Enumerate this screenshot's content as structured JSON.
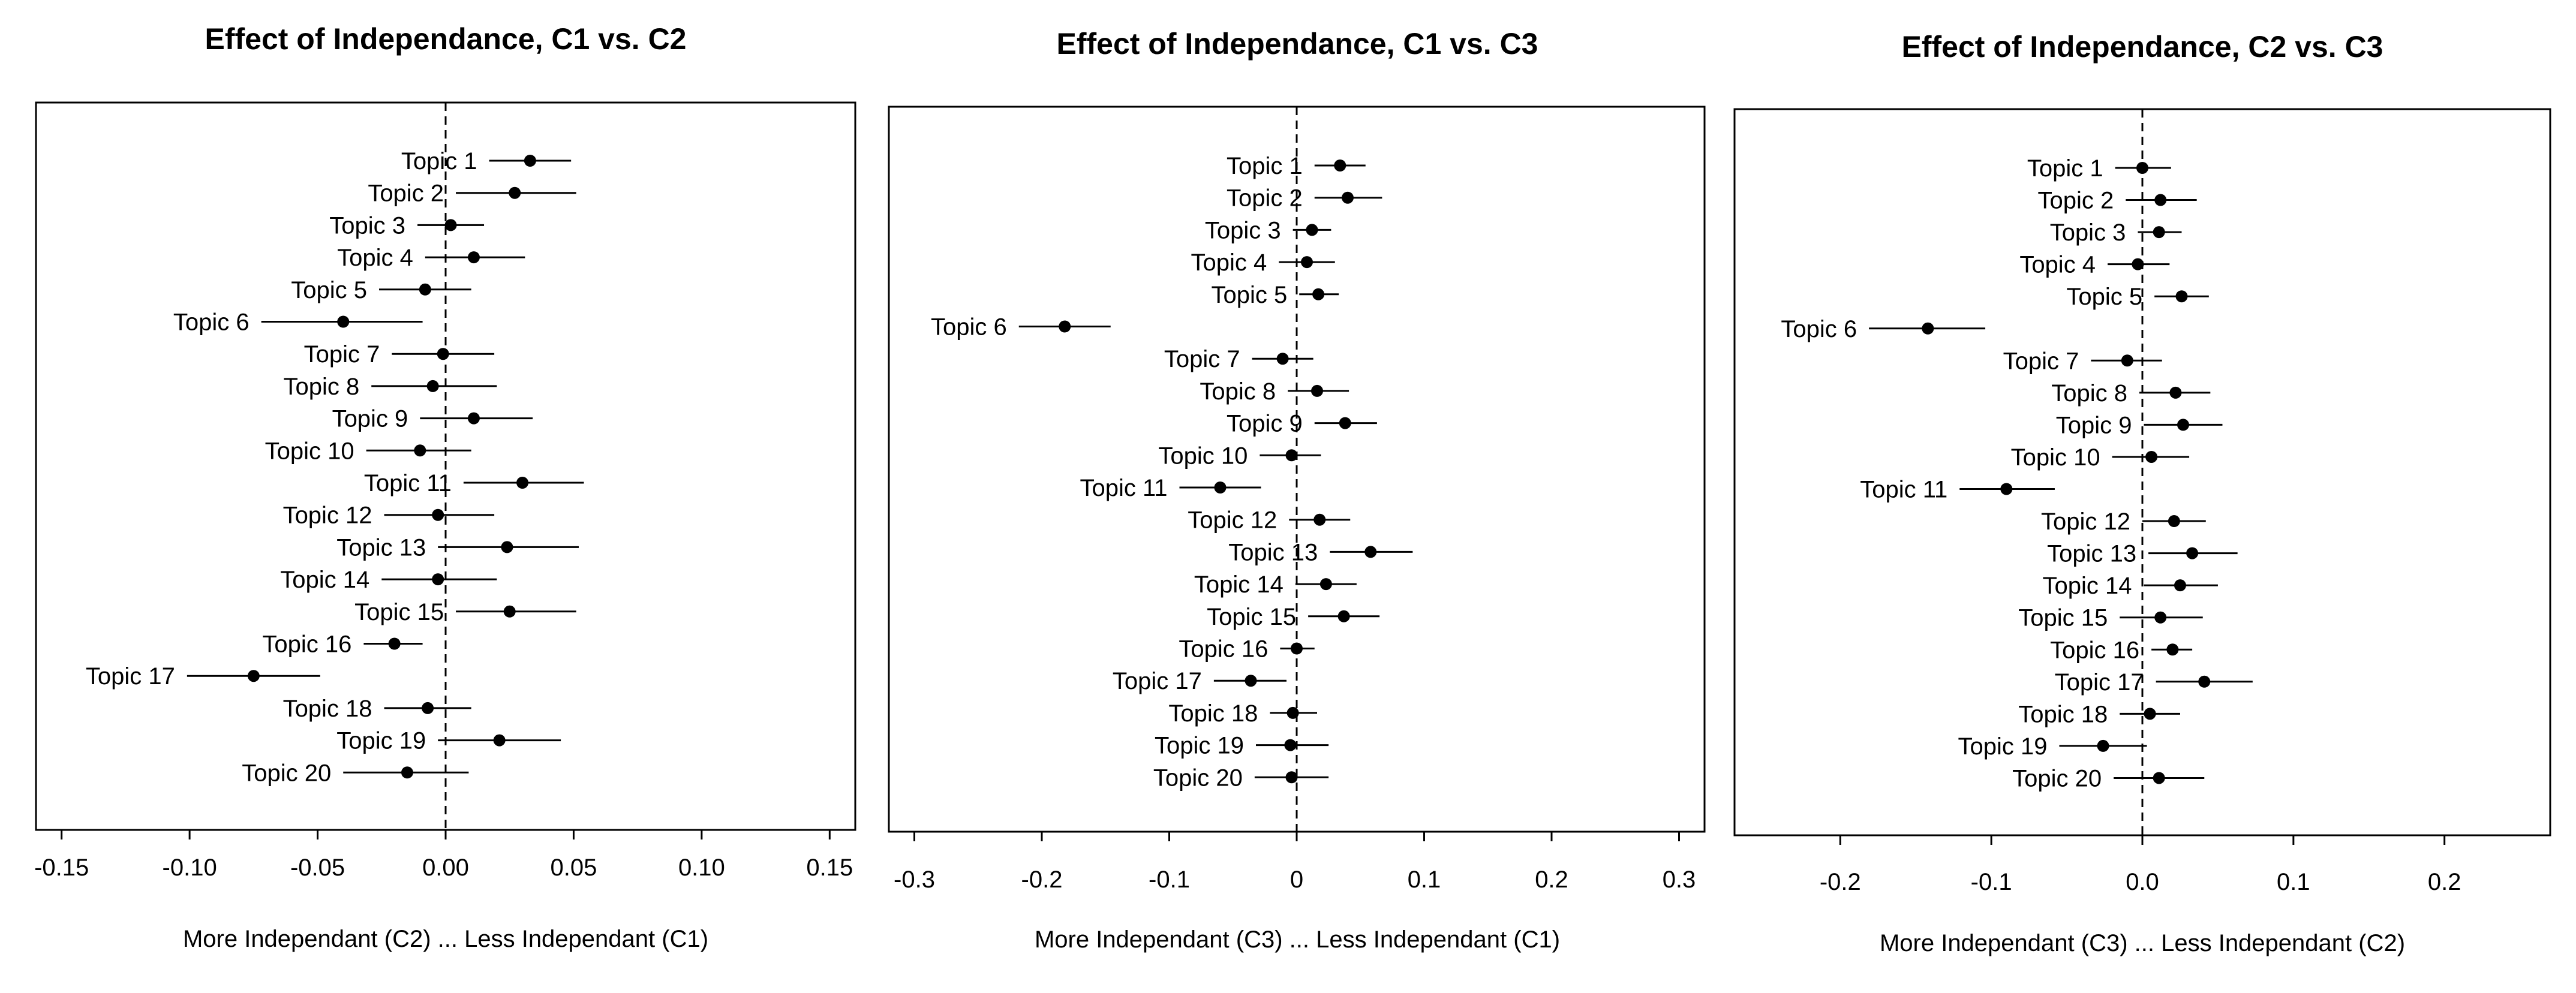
{
  "chart_data": [
    {
      "type": "forest",
      "title": "Effect of Independance, C1 vs. C2",
      "xlabel": "More Independant (C2) ... Less Independant (C1)",
      "xlim": [
        -0.16,
        0.16
      ],
      "xticks": [
        -0.15,
        -0.1,
        -0.05,
        0.0,
        0.05,
        0.1,
        0.15
      ],
      "xtick_labels": [
        "-0.15",
        "-0.10",
        "-0.05",
        "0.00",
        "0.05",
        "0.10",
        "0.15"
      ],
      "reference_line": 0,
      "points": [
        {
          "label": "Topic 1",
          "estimate": 0.033,
          "lower": 0.017,
          "upper": 0.049
        },
        {
          "label": "Topic 2",
          "estimate": 0.027,
          "lower": 0.004,
          "upper": 0.051
        },
        {
          "label": "Topic 3",
          "estimate": 0.002,
          "lower": -0.011,
          "upper": 0.015
        },
        {
          "label": "Topic 4",
          "estimate": 0.011,
          "lower": -0.008,
          "upper": 0.031
        },
        {
          "label": "Topic 5",
          "estimate": -0.008,
          "lower": -0.026,
          "upper": 0.01
        },
        {
          "label": "Topic 6",
          "estimate": -0.04,
          "lower": -0.072,
          "upper": -0.009
        },
        {
          "label": "Topic 7",
          "estimate": -0.001,
          "lower": -0.021,
          "upper": 0.019
        },
        {
          "label": "Topic 8",
          "estimate": -0.005,
          "lower": -0.029,
          "upper": 0.02
        },
        {
          "label": "Topic 9",
          "estimate": 0.011,
          "lower": -0.01,
          "upper": 0.034
        },
        {
          "label": "Topic 10",
          "estimate": -0.01,
          "lower": -0.031,
          "upper": 0.01
        },
        {
          "label": "Topic 11",
          "estimate": 0.03,
          "lower": 0.007,
          "upper": 0.054
        },
        {
          "label": "Topic 12",
          "estimate": -0.003,
          "lower": -0.024,
          "upper": 0.019
        },
        {
          "label": "Topic 13",
          "estimate": 0.024,
          "lower": -0.003,
          "upper": 0.052
        },
        {
          "label": "Topic 14",
          "estimate": -0.003,
          "lower": -0.025,
          "upper": 0.02
        },
        {
          "label": "Topic 15",
          "estimate": 0.025,
          "lower": 0.004,
          "upper": 0.051
        },
        {
          "label": "Topic 16",
          "estimate": -0.02,
          "lower": -0.032,
          "upper": -0.009
        },
        {
          "label": "Topic 17",
          "estimate": -0.075,
          "lower": -0.101,
          "upper": -0.049
        },
        {
          "label": "Topic 18",
          "estimate": -0.007,
          "lower": -0.024,
          "upper": 0.01
        },
        {
          "label": "Topic 19",
          "estimate": 0.021,
          "lower": -0.003,
          "upper": 0.045
        },
        {
          "label": "Topic 20",
          "estimate": -0.015,
          "lower": -0.04,
          "upper": 0.009
        }
      ]
    },
    {
      "type": "forest",
      "title": "Effect of Independance, C1 vs. C3",
      "xlabel": "More Independant (C3) ... Less Independant (C1)",
      "xlim": [
        -0.32,
        0.32
      ],
      "xticks": [
        -0.3,
        -0.2,
        -0.1,
        0,
        0.1,
        0.2,
        0.3
      ],
      "xtick_labels": [
        "-0.3",
        "-0.2",
        "-0.1",
        "0",
        "0.1",
        "0.2",
        "0.3"
      ],
      "reference_line": 0,
      "points": [
        {
          "label": "Topic 1",
          "estimate": 0.034,
          "lower": 0.014,
          "upper": 0.054
        },
        {
          "label": "Topic 2",
          "estimate": 0.04,
          "lower": 0.014,
          "upper": 0.067
        },
        {
          "label": "Topic 3",
          "estimate": 0.012,
          "lower": -0.003,
          "upper": 0.027
        },
        {
          "label": "Topic 4",
          "estimate": 0.008,
          "lower": -0.014,
          "upper": 0.03
        },
        {
          "label": "Topic 5",
          "estimate": 0.017,
          "lower": 0.002,
          "upper": 0.033
        },
        {
          "label": "Topic 6",
          "estimate": -0.182,
          "lower": -0.218,
          "upper": -0.146
        },
        {
          "label": "Topic 7",
          "estimate": -0.011,
          "lower": -0.035,
          "upper": 0.013
        },
        {
          "label": "Topic 8",
          "estimate": 0.016,
          "lower": -0.007,
          "upper": 0.041
        },
        {
          "label": "Topic 9",
          "estimate": 0.038,
          "lower": 0.014,
          "upper": 0.063
        },
        {
          "label": "Topic 10",
          "estimate": -0.004,
          "lower": -0.029,
          "upper": 0.019
        },
        {
          "label": "Topic 11",
          "estimate": -0.06,
          "lower": -0.092,
          "upper": -0.028
        },
        {
          "label": "Topic 12",
          "estimate": 0.018,
          "lower": -0.006,
          "upper": 0.042
        },
        {
          "label": "Topic 13",
          "estimate": 0.058,
          "lower": 0.026,
          "upper": 0.091
        },
        {
          "label": "Topic 14",
          "estimate": 0.023,
          "lower": -0.001,
          "upper": 0.047
        },
        {
          "label": "Topic 15",
          "estimate": 0.037,
          "lower": 0.009,
          "upper": 0.065
        },
        {
          "label": "Topic 16",
          "estimate": 0.0,
          "lower": -0.013,
          "upper": 0.014
        },
        {
          "label": "Topic 17",
          "estimate": -0.036,
          "lower": -0.065,
          "upper": -0.008
        },
        {
          "label": "Topic 18",
          "estimate": -0.003,
          "lower": -0.021,
          "upper": 0.016
        },
        {
          "label": "Topic 19",
          "estimate": -0.005,
          "lower": -0.032,
          "upper": 0.025
        },
        {
          "label": "Topic 20",
          "estimate": -0.004,
          "lower": -0.033,
          "upper": 0.025
        }
      ]
    },
    {
      "type": "forest",
      "title": "Effect of Independance, C2 vs. C3",
      "xlabel": "More Independant (C3) ... Less Independant (C2)",
      "xlim": [
        -0.27,
        0.27
      ],
      "xticks": [
        -0.2,
        -0.1,
        0,
        0.1,
        0.2
      ],
      "xtick_labels": [
        "-0.2",
        "-0.1",
        "0.0",
        "0.1",
        "0.2"
      ],
      "reference_line": 0,
      "points": [
        {
          "label": "Topic 1",
          "estimate": 0.0,
          "lower": -0.018,
          "upper": 0.019
        },
        {
          "label": "Topic 2",
          "estimate": 0.012,
          "lower": -0.011,
          "upper": 0.036
        },
        {
          "label": "Topic 3",
          "estimate": 0.011,
          "lower": -0.003,
          "upper": 0.026
        },
        {
          "label": "Topic 4",
          "estimate": -0.003,
          "lower": -0.023,
          "upper": 0.018
        },
        {
          "label": "Topic 5",
          "estimate": 0.026,
          "lower": 0.008,
          "upper": 0.044
        },
        {
          "label": "Topic 6",
          "estimate": -0.142,
          "lower": -0.181,
          "upper": -0.104
        },
        {
          "label": "Topic 7",
          "estimate": -0.01,
          "lower": -0.034,
          "upper": 0.013
        },
        {
          "label": "Topic 8",
          "estimate": 0.022,
          "lower": -0.002,
          "upper": 0.045
        },
        {
          "label": "Topic 9",
          "estimate": 0.027,
          "lower": 0.001,
          "upper": 0.053
        },
        {
          "label": "Topic 10",
          "estimate": 0.006,
          "lower": -0.02,
          "upper": 0.031
        },
        {
          "label": "Topic 11",
          "estimate": -0.09,
          "lower": -0.121,
          "upper": -0.058
        },
        {
          "label": "Topic 12",
          "estimate": 0.021,
          "lower": 0.0,
          "upper": 0.042
        },
        {
          "label": "Topic 13",
          "estimate": 0.033,
          "lower": 0.004,
          "upper": 0.063
        },
        {
          "label": "Topic 14",
          "estimate": 0.025,
          "lower": 0.001,
          "upper": 0.05
        },
        {
          "label": "Topic 15",
          "estimate": 0.012,
          "lower": -0.015,
          "upper": 0.04
        },
        {
          "label": "Topic 16",
          "estimate": 0.02,
          "lower": 0.006,
          "upper": 0.033
        },
        {
          "label": "Topic 17",
          "estimate": 0.041,
          "lower": 0.009,
          "upper": 0.073
        },
        {
          "label": "Topic 18",
          "estimate": 0.005,
          "lower": -0.015,
          "upper": 0.025
        },
        {
          "label": "Topic 19",
          "estimate": -0.026,
          "lower": -0.055,
          "upper": 0.003
        },
        {
          "label": "Topic 20",
          "estimate": 0.011,
          "lower": -0.019,
          "upper": 0.041
        }
      ]
    }
  ]
}
